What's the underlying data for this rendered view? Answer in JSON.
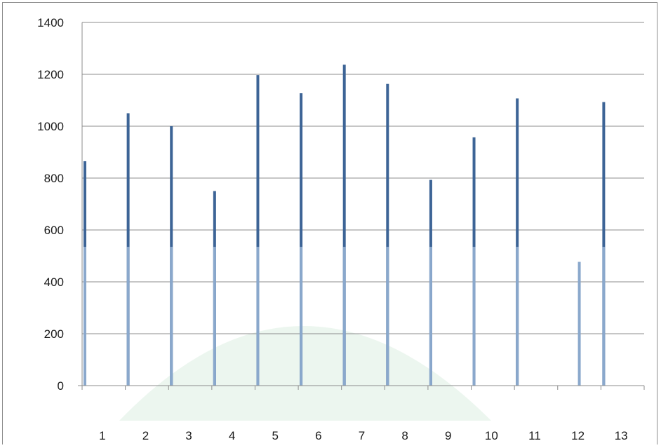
{
  "chart_data": {
    "type": "bar",
    "categories": [
      "1",
      "2",
      "3",
      "4",
      "5",
      "6",
      "7",
      "8",
      "9",
      "10",
      "11",
      "12",
      "13"
    ],
    "series": [
      {
        "values": [
          865,
          1050,
          1000,
          750,
          1197,
          1127,
          1237,
          1163,
          793,
          957,
          1107,
          0,
          1093
        ]
      },
      {
        "values": [
          535,
          535,
          535,
          535,
          535,
          535,
          535,
          535,
          535,
          535,
          535,
          477,
          535
        ]
      }
    ],
    "colors": [
      "#3d6496",
      "#8aa8cc"
    ],
    "title": "",
    "xlabel": "",
    "ylabel": "",
    "ylim": [
      0,
      1400
    ],
    "yticks": [
      0,
      200,
      400,
      600,
      800,
      1000,
      1200,
      1400
    ],
    "grid": true,
    "legend": "none"
  }
}
